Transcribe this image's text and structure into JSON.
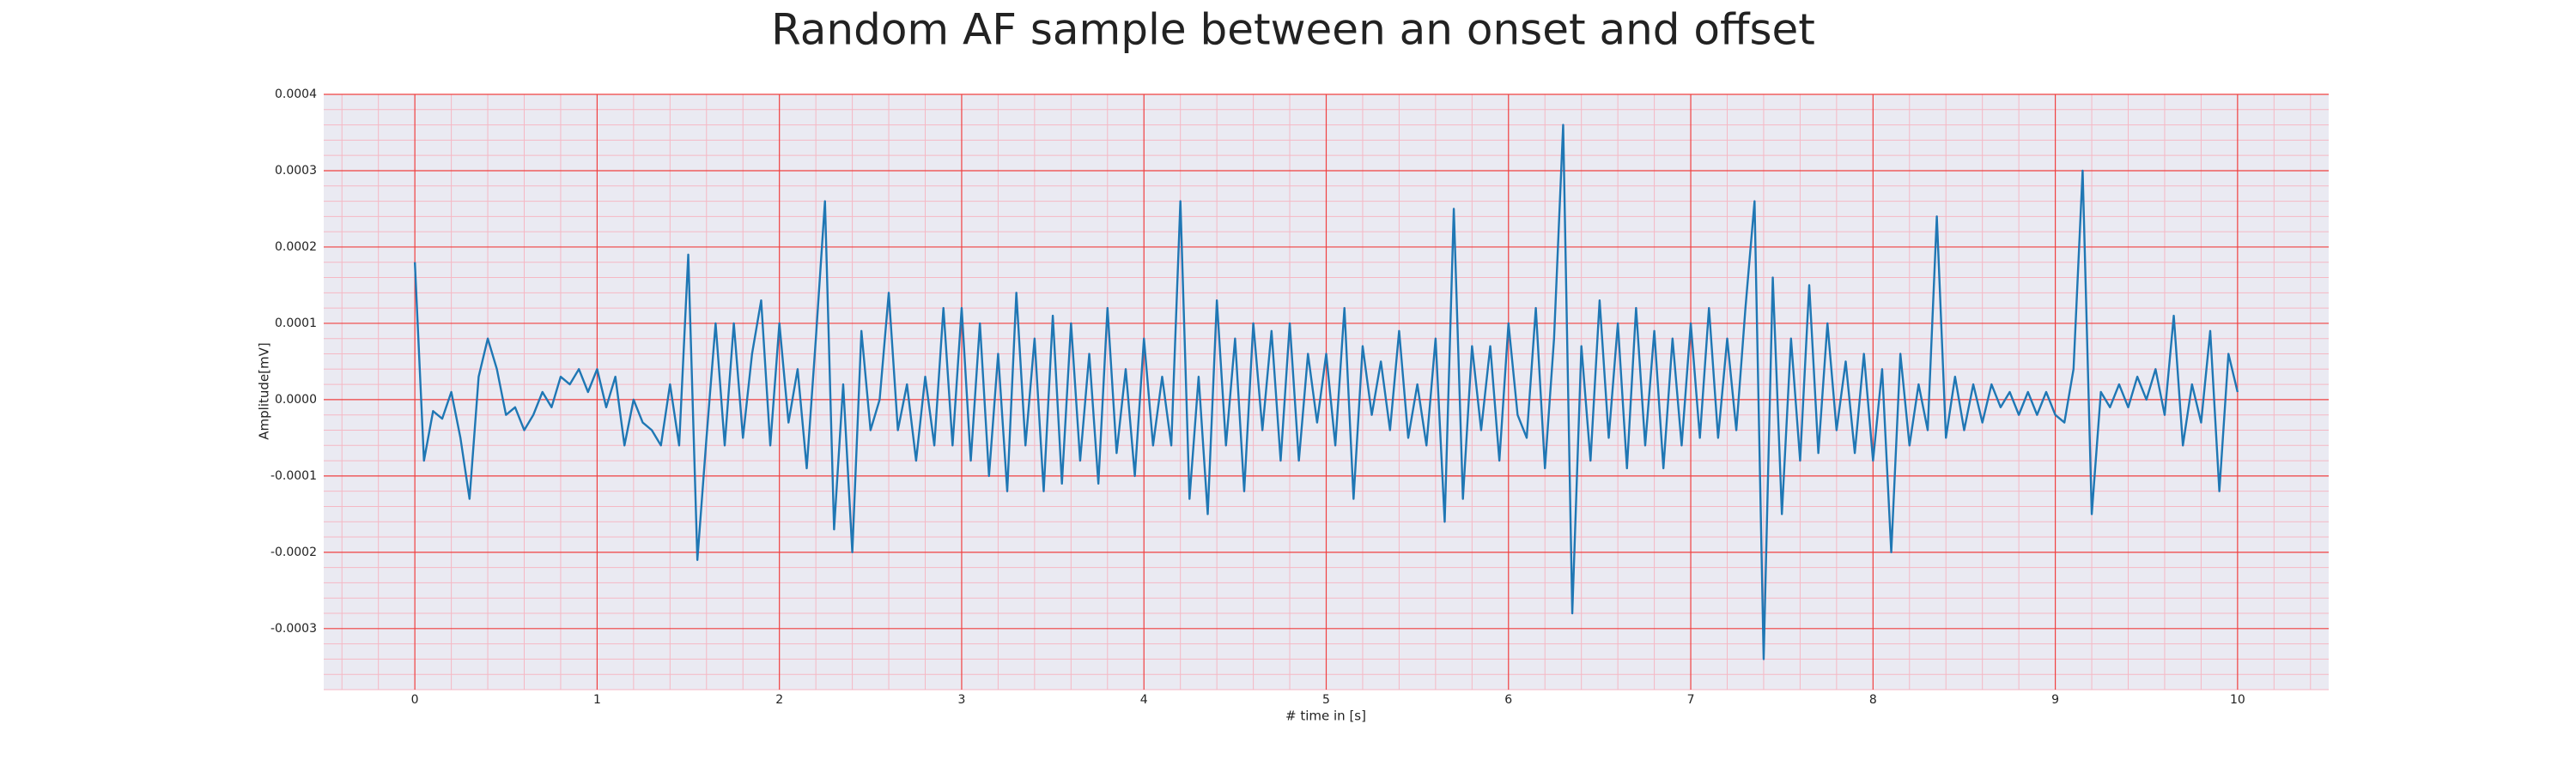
{
  "chart_data": {
    "type": "line",
    "title": "Random AF sample between an onset and offset",
    "xlabel": "# time in [s]",
    "ylabel": "Amplitude[mV]",
    "xlim": [
      -0.5,
      10.5
    ],
    "ylim": [
      -0.00038,
      0.0004
    ],
    "xticks": [
      0,
      1,
      2,
      3,
      4,
      5,
      6,
      7,
      8,
      9,
      10
    ],
    "yticks": [
      -0.0003,
      -0.0002,
      -0.0001,
      {
        "value": 0,
        "label": "0.0000"
      },
      0.0001,
      0.0002,
      0.0003,
      0.0004
    ],
    "grid": true,
    "minor_grid": true,
    "series": [
      {
        "color": "#1f77b4",
        "x": [
          0,
          0.05,
          0.1,
          0.15,
          0.2,
          0.25,
          0.3,
          0.35,
          0.4,
          0.45,
          0.5,
          0.55,
          0.6,
          0.65,
          0.7,
          0.75,
          0.8,
          0.85,
          0.9,
          0.95,
          1,
          1.05,
          1.1,
          1.15,
          1.2,
          1.25,
          1.3,
          1.35,
          1.4,
          1.45,
          1.5,
          1.55,
          1.6,
          1.65,
          1.7,
          1.75,
          1.8,
          1.85,
          1.9,
          1.95,
          2,
          2.05,
          2.1,
          2.15,
          2.2,
          2.25,
          2.3,
          2.35,
          2.4,
          2.45,
          2.5,
          2.55,
          2.6,
          2.65,
          2.7,
          2.75,
          2.8,
          2.85,
          2.9,
          2.95,
          3,
          3.05,
          3.1,
          3.15,
          3.2,
          3.25,
          3.3,
          3.35,
          3.4,
          3.45,
          3.5,
          3.55,
          3.6,
          3.65,
          3.7,
          3.75,
          3.8,
          3.85,
          3.9,
          3.95,
          4,
          4.05,
          4.1,
          4.15,
          4.2,
          4.25,
          4.3,
          4.35,
          4.4,
          4.45,
          4.5,
          4.55,
          4.6,
          4.65,
          4.7,
          4.75,
          4.8,
          4.85,
          4.9,
          4.95,
          5,
          5.05,
          5.1,
          5.15,
          5.2,
          5.25,
          5.3,
          5.35,
          5.4,
          5.45,
          5.5,
          5.55,
          5.6,
          5.65,
          5.7,
          5.75,
          5.8,
          5.85,
          5.9,
          5.95,
          6,
          6.05,
          6.1,
          6.15,
          6.2,
          6.25,
          6.3,
          6.35,
          6.4,
          6.45,
          6.5,
          6.55,
          6.6,
          6.65,
          6.7,
          6.75,
          6.8,
          6.85,
          6.9,
          6.95,
          7,
          7.05,
          7.1,
          7.15,
          7.2,
          7.25,
          7.3,
          7.35,
          7.4,
          7.45,
          7.5,
          7.55,
          7.6,
          7.65,
          7.7,
          7.75,
          7.8,
          7.85,
          7.9,
          7.95,
          8,
          8.05,
          8.1,
          8.15,
          8.2,
          8.25,
          8.3,
          8.35,
          8.4,
          8.45,
          8.5,
          8.55,
          8.6,
          8.65,
          8.7,
          8.75,
          8.8,
          8.85,
          8.9,
          8.95,
          9,
          9.05,
          9.1,
          9.15,
          9.2,
          9.25,
          9.3,
          9.35,
          9.4,
          9.45,
          9.5,
          9.55,
          9.6,
          9.65,
          9.7,
          9.75,
          9.8,
          9.85,
          9.9,
          9.95,
          10
        ],
        "values": [
          0.00018,
          -8e-05,
          -1.5e-05,
          -2.5e-05,
          1e-05,
          -5e-05,
          -0.00013,
          3e-05,
          8e-05,
          4e-05,
          -2e-05,
          -1e-05,
          -4e-05,
          -2e-05,
          1e-05,
          -1e-05,
          3e-05,
          2e-05,
          4e-05,
          1e-05,
          4e-05,
          -1e-05,
          3e-05,
          -6e-05,
          0,
          -3e-05,
          -4e-05,
          -6e-05,
          2e-05,
          -6e-05,
          0.00019,
          -0.00021,
          -5e-05,
          0.0001,
          -6e-05,
          0.0001,
          -5e-05,
          6e-05,
          0.00013,
          -6e-05,
          0.0001,
          -3e-05,
          4e-05,
          -9e-05,
          8e-05,
          0.00026,
          -0.00017,
          2e-05,
          -0.0002,
          9e-05,
          -4e-05,
          0,
          0.00014,
          -4e-05,
          2e-05,
          -8e-05,
          3e-05,
          -6e-05,
          0.00012,
          -6e-05,
          0.00012,
          -8e-05,
          0.0001,
          -0.0001,
          6e-05,
          -0.00012,
          0.00014,
          -6e-05,
          8e-05,
          -0.00012,
          0.00011,
          -0.00011,
          0.0001,
          -8e-05,
          6e-05,
          -0.00011,
          0.00012,
          -7e-05,
          4e-05,
          -0.0001,
          8e-05,
          -6e-05,
          3e-05,
          -6e-05,
          0.00026,
          -0.00013,
          3e-05,
          -0.00015,
          0.00013,
          -6e-05,
          8e-05,
          -0.00012,
          0.0001,
          -4e-05,
          9e-05,
          -8e-05,
          0.0001,
          -8e-05,
          6e-05,
          -3e-05,
          6e-05,
          -6e-05,
          0.00012,
          -0.00013,
          7e-05,
          -2e-05,
          5e-05,
          -4e-05,
          9e-05,
          -5e-05,
          2e-05,
          -6e-05,
          8e-05,
          -0.00016,
          0.00025,
          -0.00013,
          7e-05,
          -4e-05,
          7e-05,
          -8e-05,
          0.0001,
          -2e-05,
          -5e-05,
          0.00012,
          -9e-05,
          8e-05,
          0.00036,
          -0.00028,
          7e-05,
          -8e-05,
          0.00013,
          -5e-05,
          0.0001,
          -9e-05,
          0.00012,
          -6e-05,
          9e-05,
          -9e-05,
          8e-05,
          -6e-05,
          0.0001,
          -5e-05,
          0.00012,
          -5e-05,
          8e-05,
          -4e-05,
          0.00012,
          0.00026,
          -0.00034,
          0.00016,
          -0.00015,
          8e-05,
          -8e-05,
          0.00015,
          -7e-05,
          0.0001,
          -4e-05,
          5e-05,
          -7e-05,
          6e-05,
          -8e-05,
          4e-05,
          -0.0002,
          6e-05,
          -6e-05,
          2e-05,
          -4e-05,
          0.00024,
          -5e-05,
          3e-05,
          -4e-05,
          2e-05,
          -3e-05,
          2e-05,
          -1e-05,
          1e-05,
          -2e-05,
          1e-05,
          -2e-05,
          1e-05,
          -2e-05,
          -3e-05,
          4e-05,
          0.0003,
          -0.00015,
          1e-05,
          -1e-05,
          2e-05,
          -1e-05,
          3e-05,
          0,
          4e-05,
          -2e-05,
          0.00011,
          -6e-05,
          2e-05,
          -3e-05,
          9e-05,
          -0.00012,
          6e-05,
          1e-05
        ]
      }
    ]
  }
}
